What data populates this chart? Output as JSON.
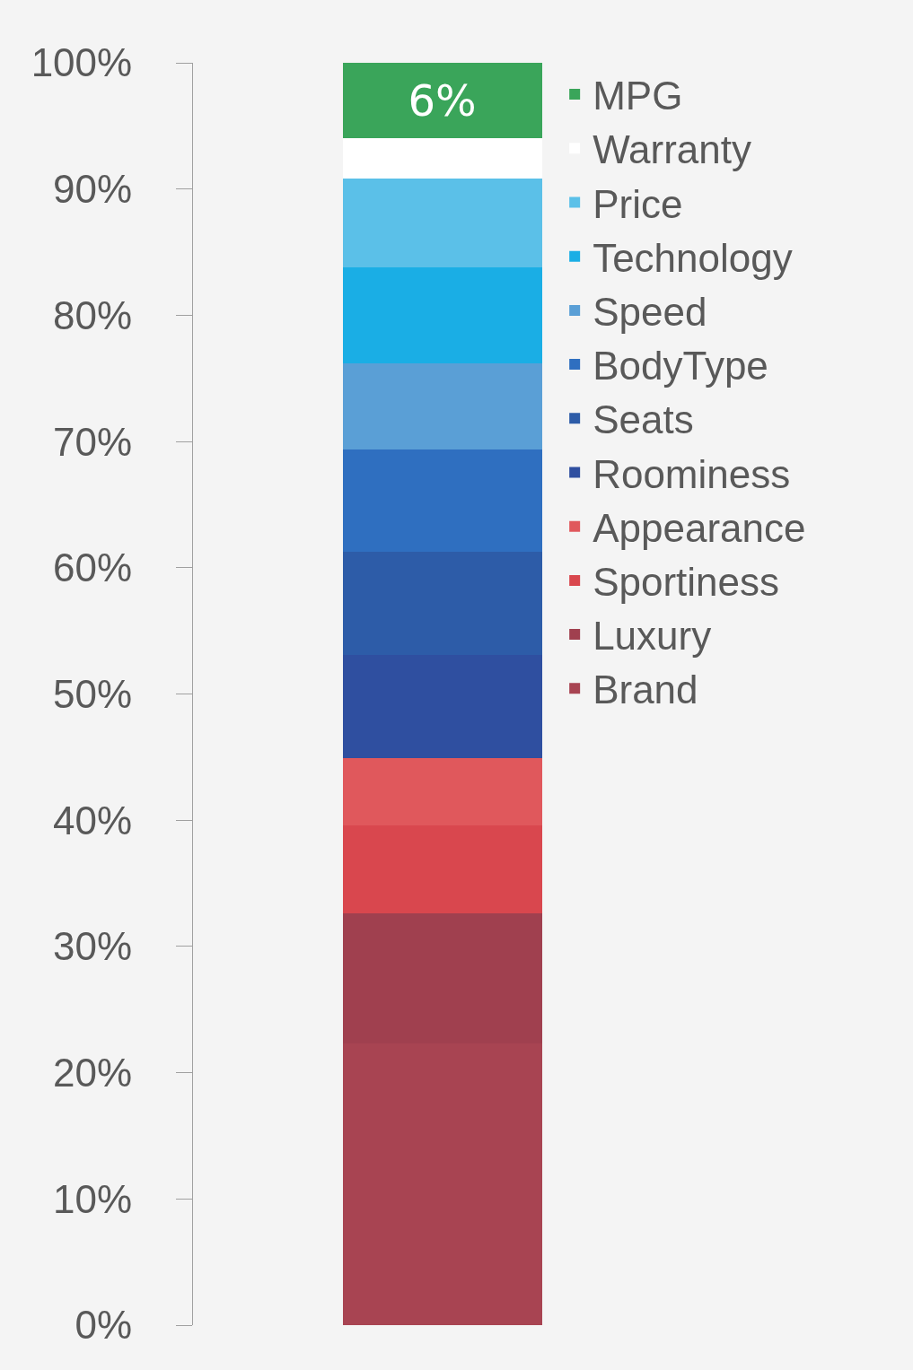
{
  "chart_data": {
    "type": "bar",
    "stacked": true,
    "categories": [
      null
    ],
    "series": [
      {
        "name": "Brand",
        "color": "#a84452",
        "values": [
          22.3
        ]
      },
      {
        "name": "Luxury",
        "color": "#a0404f",
        "values": [
          10.3
        ]
      },
      {
        "name": "Sportiness",
        "color": "#d9474e",
        "values": [
          7.0
        ]
      },
      {
        "name": "Appearance",
        "color": "#e0585c",
        "values": [
          5.3
        ]
      },
      {
        "name": "Roominess",
        "color": "#2f4fa0",
        "values": [
          8.2
        ]
      },
      {
        "name": "Seats",
        "color": "#2d5ca8",
        "values": [
          8.2
        ]
      },
      {
        "name": "BodyType",
        "color": "#2f6fc0",
        "values": [
          8.1
        ]
      },
      {
        "name": "Speed",
        "color": "#5a9fd6",
        "values": [
          6.8
        ]
      },
      {
        "name": "Technology",
        "color": "#1aaee5",
        "values": [
          7.6
        ]
      },
      {
        "name": "Price",
        "color": "#5bc0e8",
        "values": [
          7.0
        ]
      },
      {
        "name": "Warranty",
        "color": "#ffffff",
        "values": [
          3.2
        ]
      },
      {
        "name": "MPG",
        "color": "#3aa55a",
        "values": [
          6.0
        ],
        "value_labels": [
          "6%"
        ]
      }
    ],
    "ylim": [
      0,
      100
    ],
    "yticks": [
      {
        "value": 0,
        "label": "0%"
      },
      {
        "value": 10,
        "label": "10%"
      },
      {
        "value": 20,
        "label": "20%"
      },
      {
        "value": 30,
        "label": "30%"
      },
      {
        "value": 40,
        "label": "40%"
      },
      {
        "value": 50,
        "label": "50%"
      },
      {
        "value": 60,
        "label": "60%"
      },
      {
        "value": 70,
        "label": "70%"
      },
      {
        "value": 80,
        "label": "80%"
      },
      {
        "value": 90,
        "label": "90%"
      },
      {
        "value": 100,
        "label": "100%"
      }
    ],
    "grid": false,
    "legend": "right",
    "tick_labels": "y"
  }
}
